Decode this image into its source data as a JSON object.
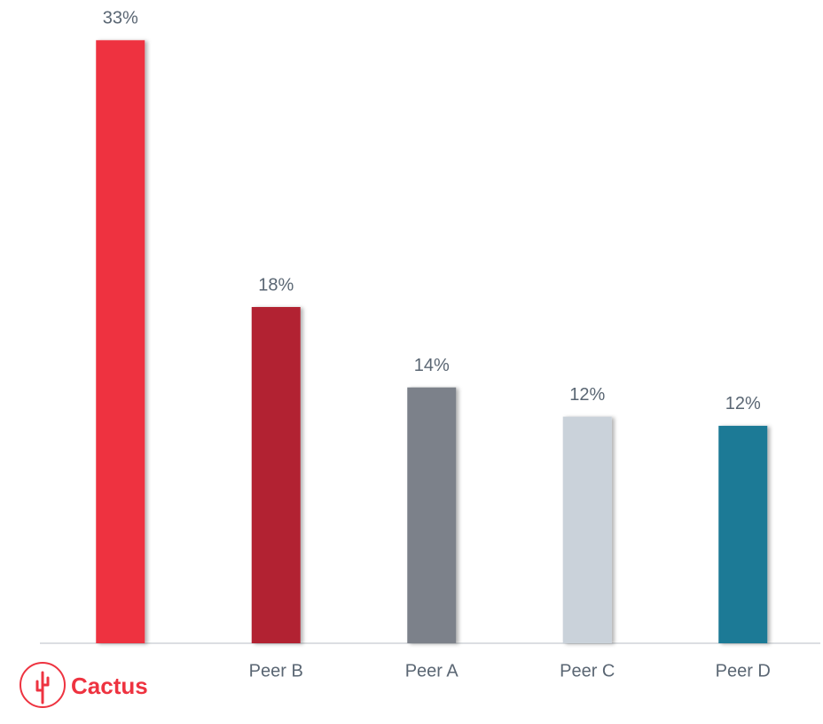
{
  "chart_data": {
    "type": "bar",
    "categories": [
      null,
      "Peer B",
      "Peer A",
      "Peer C",
      "Peer D"
    ],
    "values": [
      33,
      18.4,
      14,
      12.4,
      11.9
    ],
    "value_labels": [
      "33%",
      "18%",
      "14%",
      "12%",
      "12%"
    ],
    "colors": [
      "#ee3340",
      "#b22331",
      "#7b818a",
      "#cad2da",
      "#1f7a96"
    ],
    "ylim": [
      0,
      35.2
    ]
  },
  "logo": {
    "text": "Cactus"
  }
}
